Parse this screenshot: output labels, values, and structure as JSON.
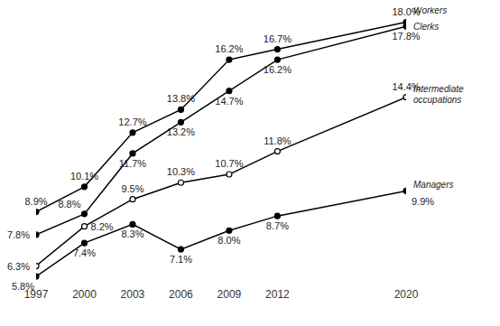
{
  "chart_data": {
    "type": "line",
    "x": [
      1997,
      2000,
      2003,
      2006,
      2009,
      2012,
      2020
    ],
    "xlim": [
      1997,
      2020
    ],
    "xticks": [
      1997,
      2000,
      2003,
      2006,
      2009,
      2012,
      2020
    ],
    "ylim": [
      5.5,
      18.5
    ],
    "tick_labels": "x",
    "grid": false,
    "data_labels": true,
    "series": [
      {
        "name": "Workers",
        "color": "#000000",
        "marker": "circle",
        "line_style": "solid",
        "values": [
          8.9,
          10.1,
          12.7,
          13.8,
          16.2,
          16.7,
          18.0
        ],
        "value_labels": [
          "8.9%",
          "10.1%",
          "12.7%",
          "13.8%",
          "16.2%",
          "16.7%",
          "18.0%"
        ]
      },
      {
        "name": "Clerks",
        "color": "#000000",
        "marker": "circle",
        "line_style": "solid",
        "values": [
          7.8,
          8.8,
          11.7,
          13.2,
          14.7,
          16.2,
          17.8
        ],
        "value_labels": [
          "7.8%",
          "8.8%",
          "11.7%",
          "13.2%",
          "14.7%",
          "16.2%",
          "17.8%"
        ]
      },
      {
        "name": "Intermediate occupations",
        "color": "#000000",
        "marker": "circle_open",
        "line_style": "solid",
        "values": [
          6.3,
          8.2,
          9.5,
          10.3,
          10.7,
          11.8,
          14.4
        ],
        "value_labels": [
          "6.3%",
          "8.2%",
          "9.5%",
          "10.3%",
          "10.7%",
          "11.8%",
          "14.4%"
        ]
      },
      {
        "name": "Managers",
        "color": "#000000",
        "marker": "circle",
        "line_style": "solid",
        "values": [
          5.8,
          7.4,
          8.3,
          7.1,
          8.0,
          8.7,
          9.9
        ],
        "value_labels": [
          "5.8%",
          "7.4%",
          "8.3%",
          "7.1%",
          "8.0%",
          "8.7%",
          "9.9%"
        ]
      }
    ]
  }
}
